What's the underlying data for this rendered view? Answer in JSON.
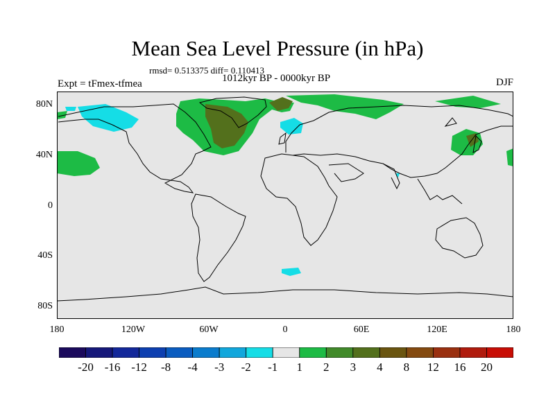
{
  "title": "Mean Sea Level Pressure (in hPa)",
  "stats": "rmsd= 0.513375 diff= 0.110413",
  "experiment": "Expt = tFmex-tfmea",
  "period": "1012kyr BP - 0000kyr BP",
  "season": "DJF",
  "lat_ticks": [
    "80N",
    "40N",
    "0",
    "40S",
    "80S"
  ],
  "lon_ticks": [
    "180",
    "120W",
    "60W",
    "0",
    "60E",
    "120E",
    "180"
  ],
  "colorbar": {
    "labels": [
      "-20",
      "-16",
      "-12",
      "-8",
      "-4",
      "-3",
      "-2",
      "-1",
      "1",
      "2",
      "3",
      "4",
      "8",
      "12",
      "16",
      "20"
    ],
    "colors": [
      "#1b0a5c",
      "#16187a",
      "#13289a",
      "#0d3fb0",
      "#0a5cc0",
      "#0a7ccd",
      "#11a7dc",
      "#15dde6",
      "#e6e6e6",
      "#1dbb45",
      "#418a2a",
      "#53701c",
      "#6a5510",
      "#844a10",
      "#9a3010",
      "#b01b0d",
      "#c80d05"
    ]
  },
  "colors": {
    "background": "#e6e6e6",
    "light_green": "#1dbb45",
    "olive": "#53701c",
    "cyan": "#15dde6"
  }
}
